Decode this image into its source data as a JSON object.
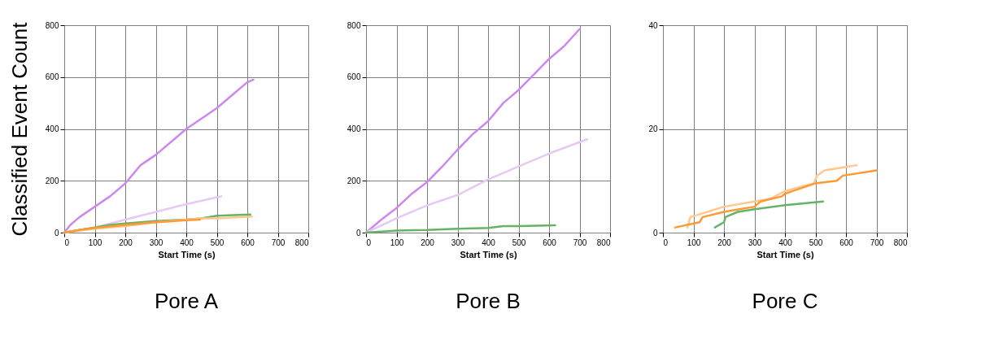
{
  "chart_data": [
    {
      "type": "line",
      "title": "Pore A",
      "xlabel": "Start Time (s)",
      "ylabel": "Classified Event Count",
      "xlim": [
        0,
        800
      ],
      "xticks": [
        0,
        100,
        200,
        300,
        400,
        500,
        600,
        700,
        800
      ],
      "ylim": [
        0,
        800
      ],
      "yticks": [
        0,
        200,
        400,
        600,
        800
      ],
      "grid": true,
      "series": [
        {
          "color": "#cc88ee",
          "x": [
            0,
            20,
            50,
            100,
            150,
            200,
            250,
            300,
            350,
            400,
            450,
            500,
            550,
            600,
            620
          ],
          "values": [
            0,
            30,
            60,
            100,
            140,
            190,
            260,
            300,
            350,
            400,
            440,
            480,
            530,
            580,
            590
          ]
        },
        {
          "color": "#e8c8f4",
          "x": [
            0,
            100,
            200,
            300,
            400,
            515
          ],
          "values": [
            0,
            20,
            50,
            80,
            110,
            140
          ]
        },
        {
          "color": "#66b366",
          "x": [
            0,
            50,
            100,
            150,
            200,
            300,
            400,
            450,
            500,
            610
          ],
          "values": [
            0,
            10,
            20,
            30,
            35,
            45,
            50,
            55,
            65,
            70
          ]
        },
        {
          "color": "#ffc890",
          "x": [
            0,
            100,
            200,
            300,
            450,
            500,
            615
          ],
          "values": [
            0,
            15,
            25,
            40,
            55,
            55,
            62
          ]
        },
        {
          "color": "#ff9933",
          "x": [
            0,
            50,
            100,
            200,
            300,
            400,
            445
          ],
          "values": [
            0,
            10,
            18,
            30,
            40,
            48,
            50
          ]
        }
      ]
    },
    {
      "type": "line",
      "title": "Pore B",
      "xlabel": "Start Time (s)",
      "xlim": [
        0,
        800
      ],
      "xticks": [
        0,
        100,
        200,
        300,
        400,
        500,
        600,
        700,
        800
      ],
      "ylim": [
        0,
        800
      ],
      "yticks": [
        0,
        200,
        400,
        600,
        800
      ],
      "grid": true,
      "series": [
        {
          "color": "#cc88ee",
          "x": [
            0,
            50,
            100,
            150,
            200,
            250,
            300,
            350,
            400,
            450,
            500,
            550,
            600,
            650,
            700
          ],
          "values": [
            0,
            50,
            95,
            150,
            195,
            255,
            320,
            380,
            430,
            500,
            550,
            610,
            670,
            720,
            785
          ]
        },
        {
          "color": "#e8c8f4",
          "x": [
            0,
            100,
            200,
            300,
            400,
            500,
            600,
            725
          ],
          "values": [
            0,
            55,
            105,
            145,
            205,
            255,
            305,
            360
          ]
        },
        {
          "color": "#66b366",
          "x": [
            0,
            100,
            200,
            300,
            400,
            450,
            500,
            620
          ],
          "values": [
            0,
            8,
            10,
            15,
            18,
            25,
            25,
            28
          ]
        }
      ]
    },
    {
      "type": "line",
      "title": "Pore C",
      "xlabel": "Start Time (s)",
      "xlim": [
        0,
        800
      ],
      "xticks": [
        0,
        100,
        200,
        300,
        400,
        500,
        600,
        700,
        800
      ],
      "ylim": [
        0,
        40
      ],
      "yticks": [
        0,
        20,
        40
      ],
      "grid": true,
      "series": [
        {
          "color": "#ffc890",
          "x": [
            80,
            90,
            200,
            300,
            350,
            400,
            460,
            495,
            505,
            530,
            635
          ],
          "values": [
            1,
            3,
            5,
            6,
            6.5,
            8,
            9,
            9.5,
            11,
            12,
            13
          ]
        },
        {
          "color": "#ff9933",
          "x": [
            40,
            120,
            130,
            200,
            300,
            320,
            390,
            400,
            500,
            570,
            590,
            700
          ],
          "values": [
            1,
            2,
            3,
            4,
            5,
            6,
            7,
            7.5,
            9.5,
            10,
            11,
            12
          ]
        },
        {
          "color": "#66b366",
          "x": [
            170,
            200,
            205,
            245,
            300,
            400,
            525
          ],
          "values": [
            1,
            2,
            3,
            4,
            4.5,
            5.3,
            6
          ]
        }
      ]
    }
  ]
}
